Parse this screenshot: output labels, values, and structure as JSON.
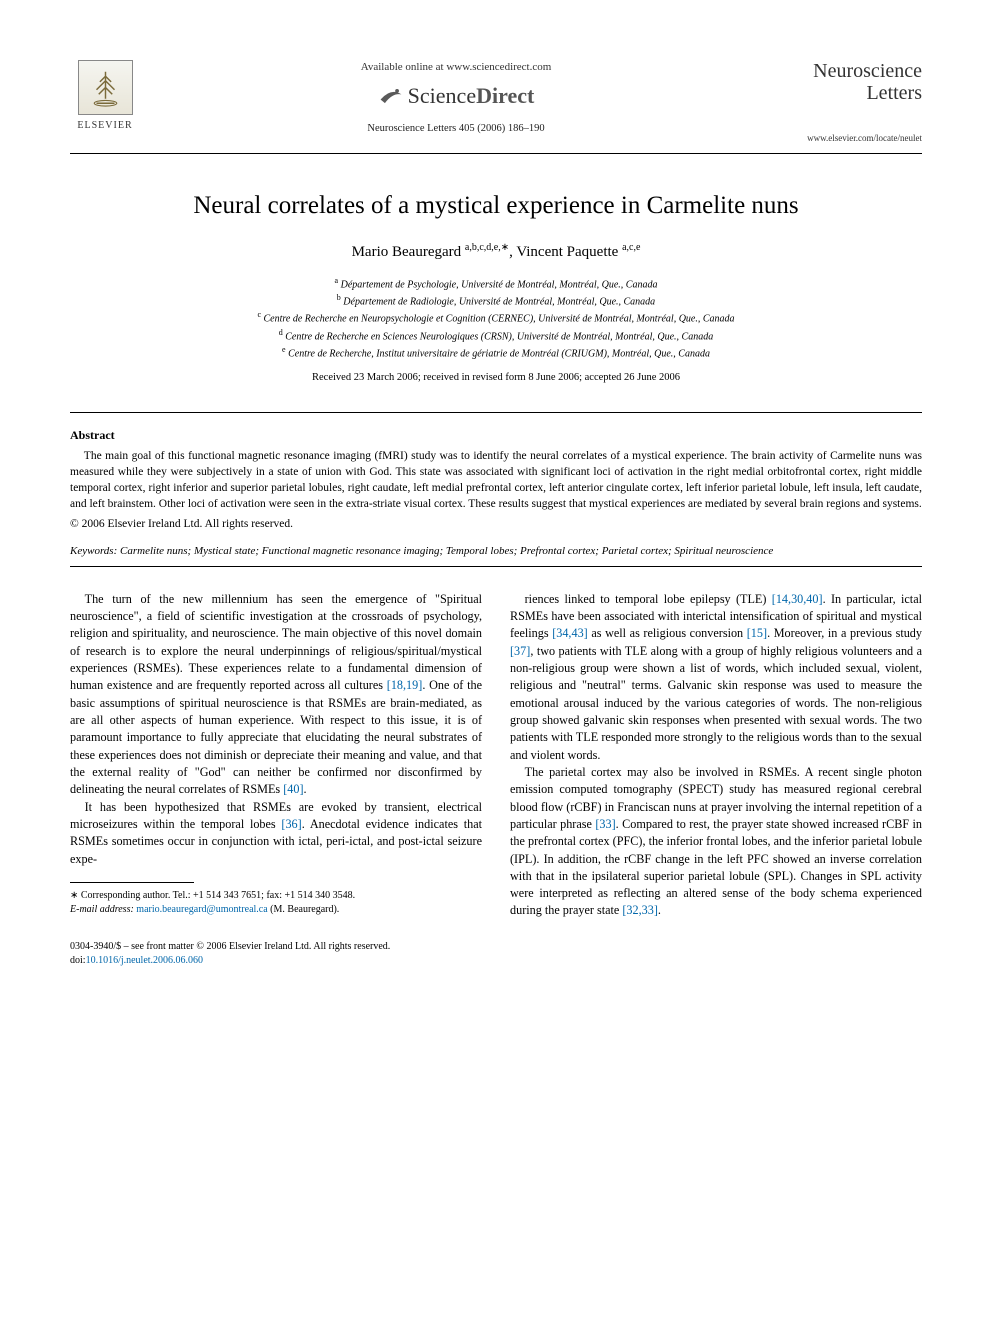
{
  "header": {
    "elsevier_label": "ELSEVIER",
    "available_online": "Available online at www.sciencedirect.com",
    "sciencedirect_prefix": "Science",
    "sciencedirect_suffix": "Direct",
    "journal_ref": "Neuroscience Letters 405 (2006) 186–190",
    "journal_name_line1": "Neuroscience",
    "journal_name_line2": "Letters",
    "journal_url": "www.elsevier.com/locate/neulet"
  },
  "article": {
    "title": "Neural correlates of a mystical experience in Carmelite nuns",
    "authors_html": "Mario Beauregard <sup>a,b,c,d,e,∗</sup>, Vincent Paquette <sup>a,c,e</sup>",
    "affiliations": [
      {
        "sup": "a",
        "text": "Département de Psychologie, Université de Montréal, Montréal, Que., Canada"
      },
      {
        "sup": "b",
        "text": "Département de Radiologie, Université de Montréal, Montréal, Que., Canada"
      },
      {
        "sup": "c",
        "text": "Centre de Recherche en Neuropsychologie et Cognition (CERNEC), Université de Montréal, Montréal, Que., Canada"
      },
      {
        "sup": "d",
        "text": "Centre de Recherche en Sciences Neurologiques (CRSN), Université de Montréal, Montréal, Que., Canada"
      },
      {
        "sup": "e",
        "text": "Centre de Recherche, Institut universitaire de gériatrie de Montréal (CRIUGM), Montréal, Que., Canada"
      }
    ],
    "dates": "Received 23 March 2006; received in revised form 8 June 2006; accepted 26 June 2006"
  },
  "abstract": {
    "heading": "Abstract",
    "text": "The main goal of this functional magnetic resonance imaging (fMRI) study was to identify the neural correlates of a mystical experience. The brain activity of Carmelite nuns was measured while they were subjectively in a state of union with God. This state was associated with significant loci of activation in the right medial orbitofrontal cortex, right middle temporal cortex, right inferior and superior parietal lobules, right caudate, left medial prefrontal cortex, left anterior cingulate cortex, left inferior parietal lobule, left insula, left caudate, and left brainstem. Other loci of activation were seen in the extra-striate visual cortex. These results suggest that mystical experiences are mediated by several brain regions and systems.",
    "copyright": "© 2006 Elsevier Ireland Ltd. All rights reserved."
  },
  "keywords": {
    "label": "Keywords:",
    "text": "Carmelite nuns; Mystical state; Functional magnetic resonance imaging; Temporal lobes; Prefrontal cortex; Parietal cortex; Spiritual neuroscience"
  },
  "body": {
    "left": [
      "The turn of the new millennium has seen the emergence of \"Spiritual neuroscience\", a field of scientific investigation at the crossroads of psychology, religion and spirituality, and neuroscience. The main objective of this novel domain of research is to explore the neural underpinnings of religious/spiritual/mystical experiences (RSMEs). These experiences relate to a fundamental dimension of human existence and are frequently reported across all cultures <span class=\"cite\">[18,19]</span>. One of the basic assumptions of spiritual neuroscience is that RSMEs are brain-mediated, as are all other aspects of human experience. With respect to this issue, it is of paramount importance to fully appreciate that elucidating the neural substrates of these experiences does not diminish or depreciate their meaning and value, and that the external reality of \"God\" can neither be confirmed nor disconfirmed by delineating the neural correlates of RSMEs <span class=\"cite\">[40]</span>.",
      "It has been hypothesized that RSMEs are evoked by transient, electrical microseizures within the temporal lobes <span class=\"cite\">[36]</span>. Anecdotal evidence indicates that RSMEs sometimes occur in conjunction with ictal, peri-ictal, and post-ictal seizure expe-"
    ],
    "right": [
      "riences linked to temporal lobe epilepsy (TLE) <span class=\"cite\">[14,30,40]</span>. In particular, ictal RSMEs have been associated with interictal intensification of spiritual and mystical feelings <span class=\"cite\">[34,43]</span> as well as religious conversion <span class=\"cite\">[15]</span>. Moreover, in a previous study <span class=\"cite\">[37]</span>, two patients with TLE along with a group of highly religious volunteers and a non-religious group were shown a list of words, which included sexual, violent, religious and \"neutral\" terms. Galvanic skin response was used to measure the emotional arousal induced by the various categories of words. The non-religious group showed galvanic skin responses when presented with sexual words. The two patients with TLE responded more strongly to the religious words than to the sexual and violent words.",
      "The parietal cortex may also be involved in RSMEs. A recent single photon emission computed tomography (SPECT) study has measured regional cerebral blood flow (rCBF) in Franciscan nuns at prayer involving the internal repetition of a particular phrase <span class=\"cite\">[33]</span>. Compared to rest, the prayer state showed increased rCBF in the prefrontal cortex (PFC), the inferior frontal lobes, and the inferior parietal lobule (IPL). In addition, the rCBF change in the left PFC showed an inverse correlation with that in the ipsilateral superior parietal lobule (SPL). Changes in SPL activity were interpreted as reflecting an altered sense of the body schema experienced during the prayer state <span class=\"cite\">[32,33]</span>."
    ]
  },
  "footnote": {
    "corresponding": "∗ Corresponding author. Tel.: +1 514 343 7651; fax: +1 514 340 3548.",
    "email_label": "E-mail address:",
    "email": "mario.beauregard@umontreal.ca",
    "email_attribution": "(M. Beauregard)."
  },
  "footer": {
    "line1": "0304-3940/$ – see front matter © 2006 Elsevier Ireland Ltd. All rights reserved.",
    "doi_label": "doi:",
    "doi": "10.1016/j.neulet.2006.06.060"
  },
  "colors": {
    "link": "#0066aa",
    "text": "#000000",
    "background": "#ffffff"
  }
}
